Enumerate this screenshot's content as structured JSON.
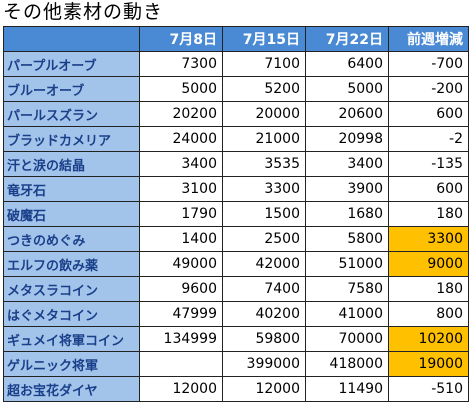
{
  "title": "その他素材の動き",
  "columns": [
    "7月8日",
    "7月15日",
    "7月22日",
    "前週増減"
  ],
  "rows": [
    {
      "name": "パープルオーブ",
      "v": [
        "7300",
        "7100",
        "6400",
        "-700"
      ],
      "hl": [
        false,
        false,
        false,
        false
      ]
    },
    {
      "name": "ブルーオーブ",
      "v": [
        "5000",
        "5200",
        "5000",
        "-200"
      ],
      "hl": [
        false,
        false,
        false,
        false
      ]
    },
    {
      "name": "パールスズラン",
      "v": [
        "20200",
        "20000",
        "20600",
        "600"
      ],
      "hl": [
        false,
        false,
        false,
        false
      ]
    },
    {
      "name": "ブラッドカメリア",
      "v": [
        "24000",
        "21000",
        "20998",
        "-2"
      ],
      "hl": [
        false,
        false,
        false,
        false
      ]
    },
    {
      "name": "汗と涙の結晶",
      "v": [
        "3400",
        "3535",
        "3400",
        "-135"
      ],
      "hl": [
        false,
        false,
        false,
        false
      ]
    },
    {
      "name": "竜牙石",
      "v": [
        "3100",
        "3300",
        "3900",
        "600"
      ],
      "hl": [
        false,
        false,
        false,
        false
      ]
    },
    {
      "name": "破魔石",
      "v": [
        "1790",
        "1500",
        "1680",
        "180"
      ],
      "hl": [
        false,
        false,
        false,
        false
      ]
    },
    {
      "name": "つきのめぐみ",
      "v": [
        "1400",
        "2500",
        "5800",
        "3300"
      ],
      "hl": [
        false,
        false,
        false,
        true
      ]
    },
    {
      "name": "エルフの飲み薬",
      "v": [
        "49000",
        "42000",
        "51000",
        "9000"
      ],
      "hl": [
        false,
        false,
        false,
        true
      ]
    },
    {
      "name": "メタスラコイン",
      "v": [
        "9600",
        "7400",
        "7580",
        "180"
      ],
      "hl": [
        false,
        false,
        false,
        false
      ]
    },
    {
      "name": "はぐメタコイン",
      "v": [
        "47999",
        "40200",
        "41000",
        "800"
      ],
      "hl": [
        false,
        false,
        false,
        false
      ]
    },
    {
      "name": "ギュメイ将軍コイン",
      "v": [
        "134999",
        "59800",
        "70000",
        "10200"
      ],
      "hl": [
        false,
        false,
        false,
        true
      ]
    },
    {
      "name": "ゲルニック将軍",
      "v": [
        "",
        "399000",
        "418000",
        "19000"
      ],
      "hl": [
        false,
        false,
        false,
        true
      ]
    },
    {
      "name": "超お宝花ダイヤ",
      "v": [
        "12000",
        "12000",
        "11490",
        "-510"
      ],
      "hl": [
        false,
        false,
        false,
        false
      ]
    }
  ],
  "colors": {
    "header_bg": "#4a8ad4",
    "name_bg": "#a3c4ea",
    "highlight": "#ffc000"
  }
}
